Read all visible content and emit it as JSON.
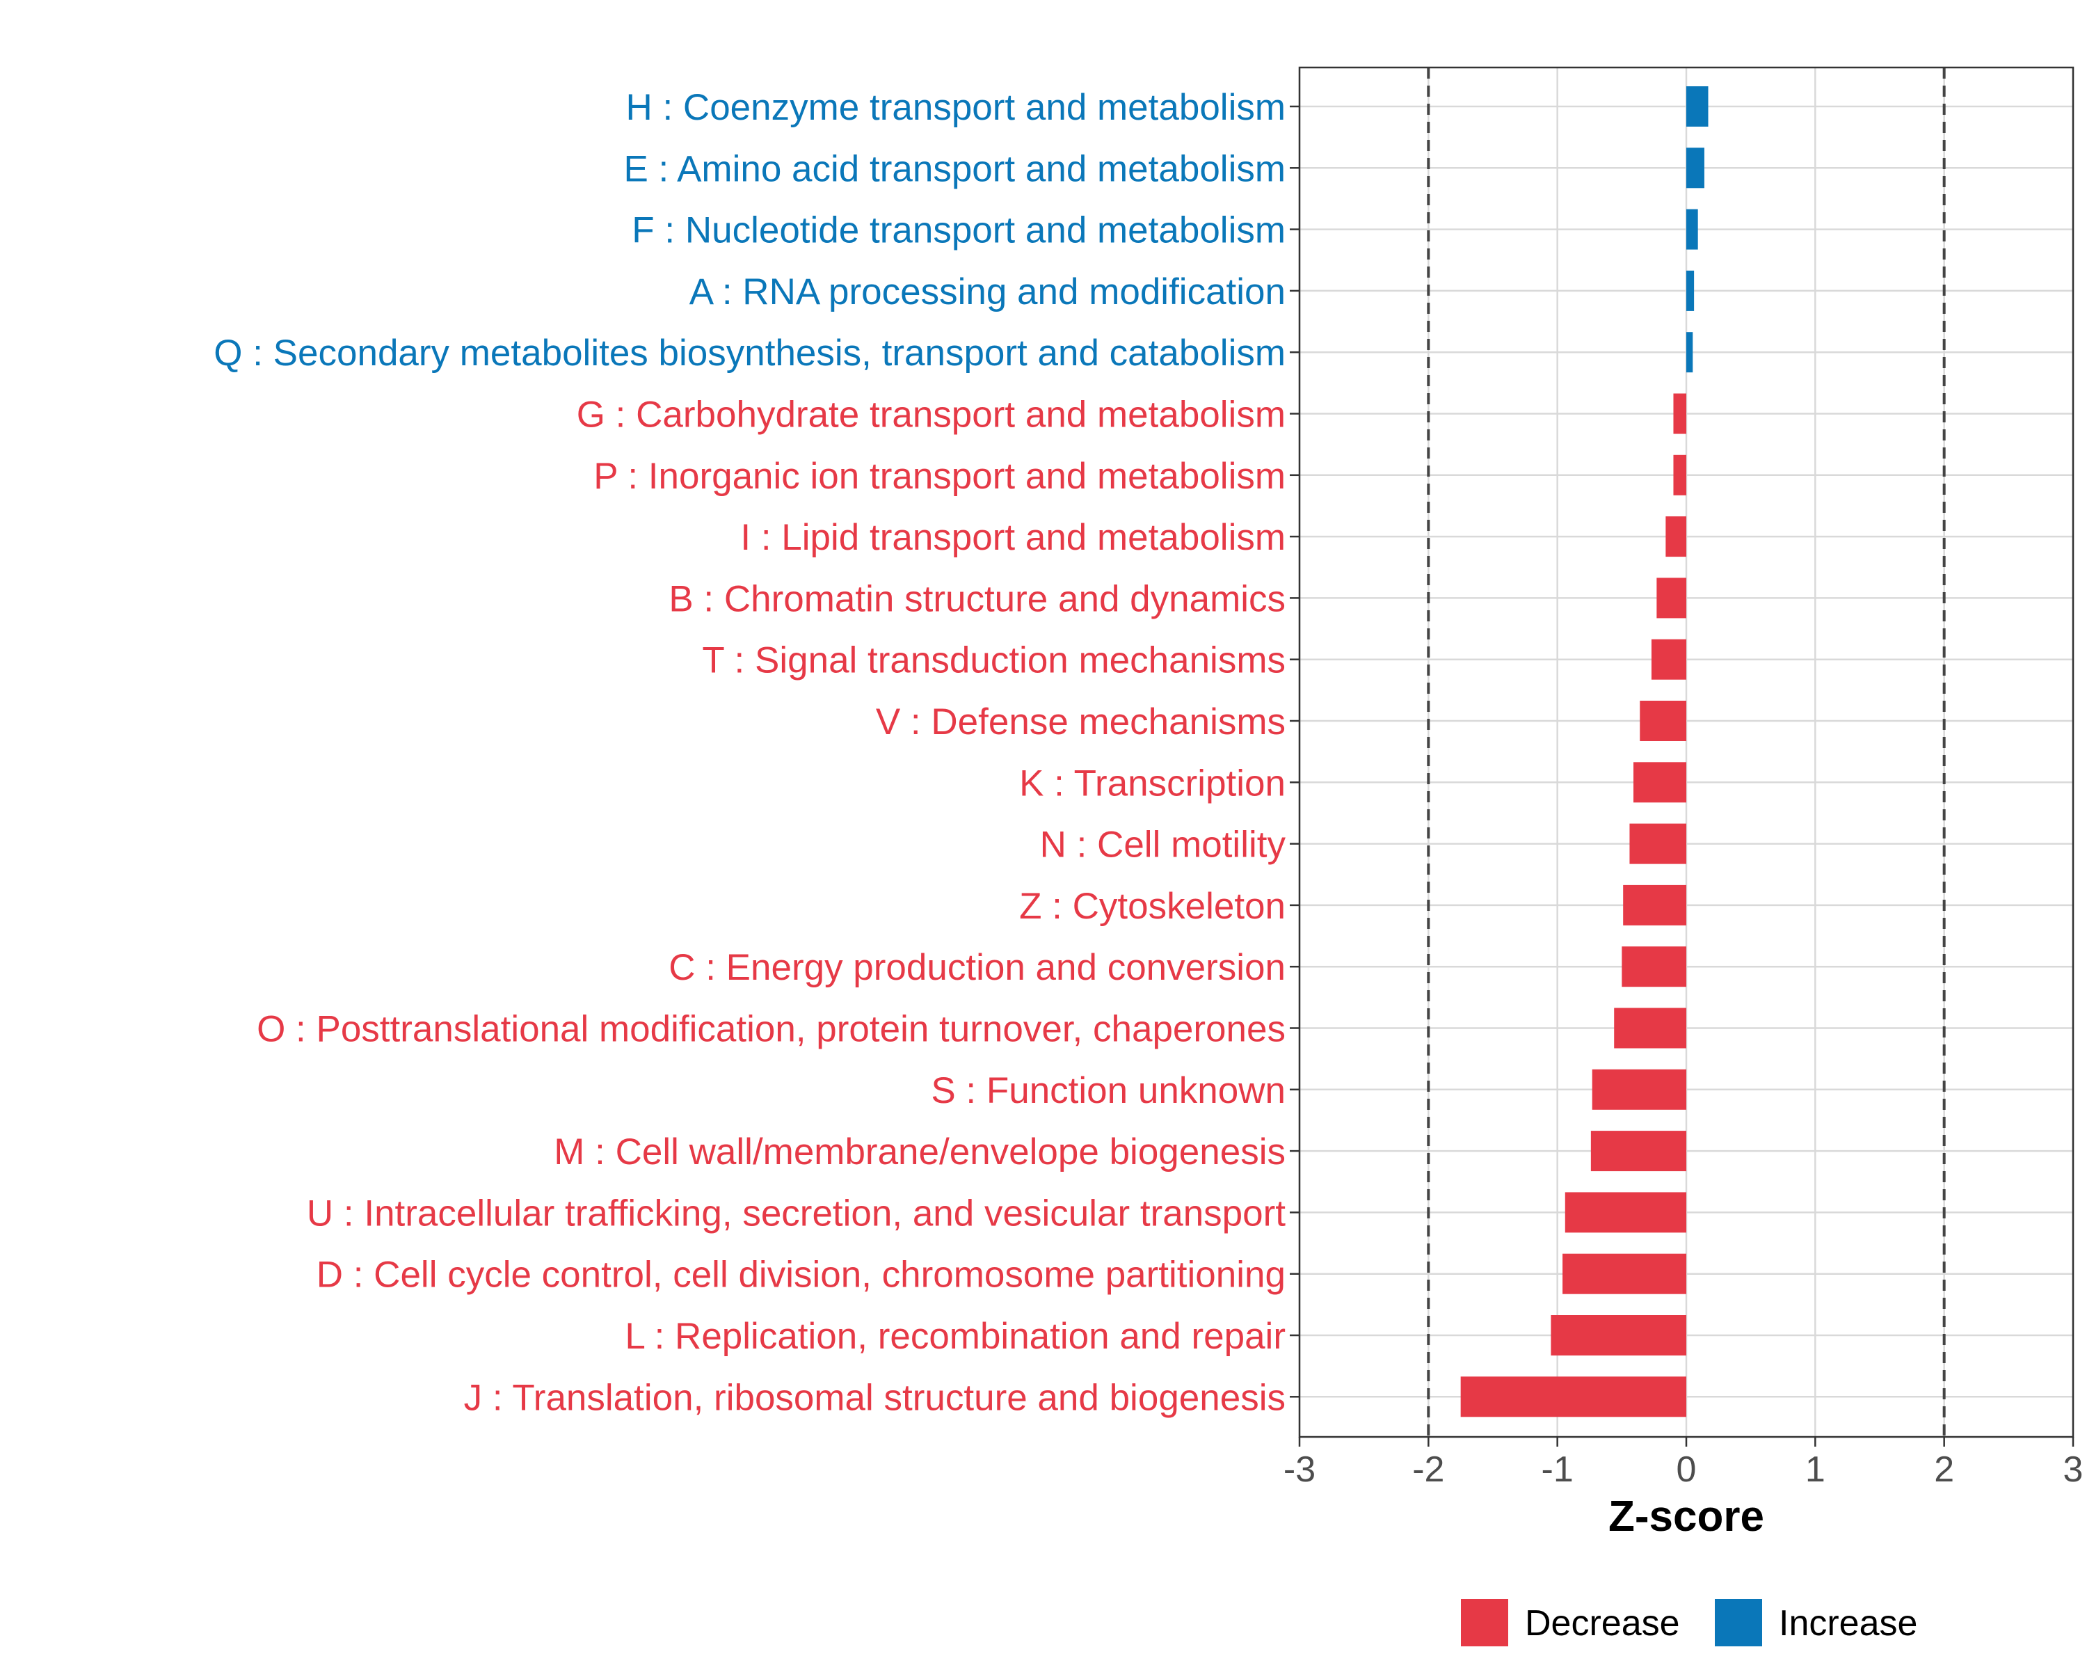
{
  "chart_data": {
    "type": "bar",
    "orientation": "horizontal",
    "xlabel": "Z-score",
    "ylabel": "",
    "xlim": [
      -3,
      3
    ],
    "ticks": [
      -3,
      -2,
      -1,
      0,
      1,
      2,
      3
    ],
    "tick_labels": [
      "-3",
      "-2",
      "-1",
      "0",
      "1",
      "2",
      "3"
    ],
    "reference_lines": [
      -2,
      2
    ],
    "grid": true,
    "legend_position": "bottom",
    "colors": {
      "Decrease": "#E63946",
      "Increase": "#0A77B9"
    },
    "legend": [
      {
        "label": "Decrease",
        "color": "#E63946"
      },
      {
        "label": "Increase",
        "color": "#0A77B9"
      }
    ],
    "categories": [
      "H : Coenzyme transport and metabolism",
      "E : Amino acid transport and metabolism",
      "F : Nucleotide transport and metabolism",
      "A : RNA processing and modification",
      "Q : Secondary metabolites biosynthesis, transport and catabolism",
      "G : Carbohydrate transport and metabolism",
      "P : Inorganic ion transport and metabolism",
      "I : Lipid transport and metabolism",
      "B : Chromatin structure and dynamics",
      "T : Signal transduction mechanisms",
      "V : Defense mechanisms",
      "K : Transcription",
      "N : Cell motility",
      "Z : Cytoskeleton",
      "C : Energy production and conversion",
      "O : Posttranslational modification, protein turnover, chaperones",
      "S : Function unknown",
      "M : Cell wall/membrane/envelope biogenesis",
      "U : Intracellular trafficking, secretion, and vesicular transport",
      "D : Cell cycle control, cell division, chromosome partitioning",
      "L : Replication, recombination and repair",
      "J : Translation, ribosomal structure and biogenesis"
    ],
    "values": [
      0.17,
      0.14,
      0.09,
      0.06,
      0.05,
      -0.1,
      -0.1,
      -0.16,
      -0.23,
      -0.27,
      -0.36,
      -0.41,
      -0.44,
      -0.49,
      -0.5,
      -0.56,
      -0.73,
      -0.74,
      -0.94,
      -0.96,
      -1.05,
      -1.75
    ],
    "groups": [
      "Increase",
      "Increase",
      "Increase",
      "Increase",
      "Increase",
      "Decrease",
      "Decrease",
      "Decrease",
      "Decrease",
      "Decrease",
      "Decrease",
      "Decrease",
      "Decrease",
      "Decrease",
      "Decrease",
      "Decrease",
      "Decrease",
      "Decrease",
      "Decrease",
      "Decrease",
      "Decrease",
      "Decrease"
    ]
  }
}
